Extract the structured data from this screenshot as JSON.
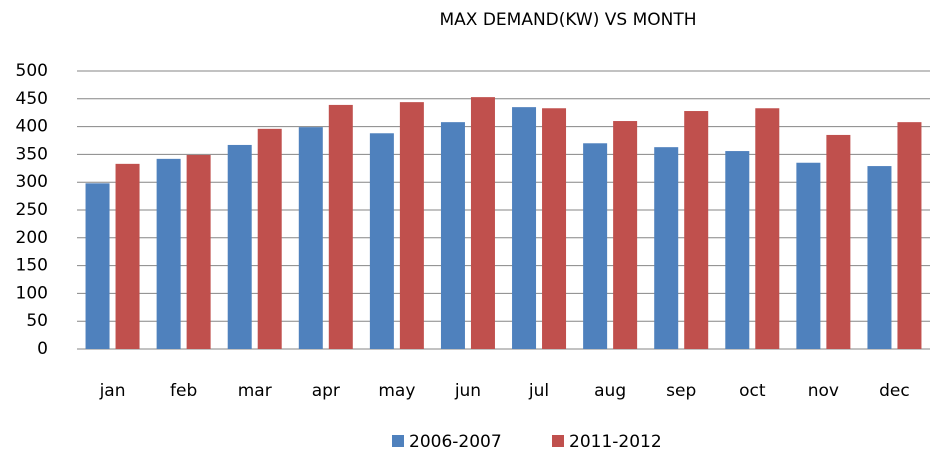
{
  "chart_data": {
    "type": "bar",
    "title": "MAX DEMAND(KW) VS MONTH",
    "categories": [
      "jan",
      "feb",
      "mar",
      "apr",
      "may",
      "jun",
      "jul",
      "aug",
      "sep",
      "oct",
      "nov",
      "dec"
    ],
    "series": [
      {
        "name": "2006-2007",
        "color": "#4f81bd",
        "values": [
          298,
          342,
          367,
          399,
          388,
          408,
          435,
          370,
          363,
          356,
          335,
          329
        ]
      },
      {
        "name": "2011-2012",
        "color": "#c0504d",
        "values": [
          333,
          349,
          396,
          439,
          444,
          453,
          433,
          410,
          428,
          433,
          385,
          408
        ]
      }
    ],
    "ylim": [
      0,
      500
    ],
    "yticks": [
      0,
      50,
      100,
      150,
      200,
      250,
      300,
      350,
      400,
      450,
      500
    ],
    "grid": true,
    "legend": "bottom"
  }
}
